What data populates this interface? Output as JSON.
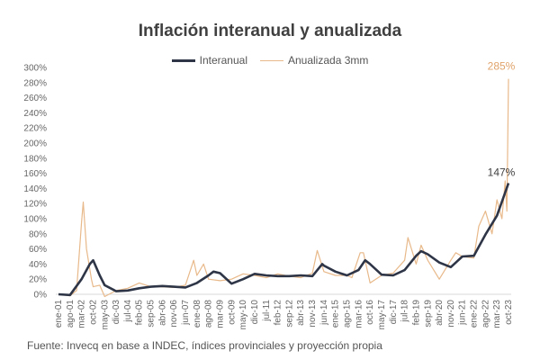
{
  "chart_data": {
    "type": "line",
    "title": "Inflación interanual y anualizada",
    "ylim": [
      0,
      300
    ],
    "y_ticks": [
      "0%",
      "20%",
      "40%",
      "60%",
      "80%",
      "100%",
      "120%",
      "140%",
      "160%",
      "180%",
      "200%",
      "220%",
      "240%",
      "260%",
      "280%",
      "300%"
    ],
    "x_ticks": [
      "ene-01",
      "ago-01",
      "mar-02",
      "oct-02",
      "may-03",
      "dic-03",
      "jul-04",
      "feb-05",
      "sep-05",
      "abr-06",
      "nov-06",
      "jun-07",
      "ene-08",
      "ago-08",
      "mar-09",
      "oct-09",
      "may-10",
      "dic-10",
      "jul-11",
      "feb-12",
      "sep-12",
      "abr-13",
      "nov-13",
      "jun-14",
      "ene-15",
      "ago-15",
      "mar-16",
      "oct-16",
      "may-17",
      "dic-17",
      "jul-18",
      "feb-19",
      "sep-19",
      "abr-20",
      "nov-20",
      "jun-21",
      "ene-22",
      "ago-22",
      "mar-23",
      "oct-23"
    ],
    "grid": false,
    "legend": "top",
    "series": [
      {
        "name": "Interanual",
        "color": "#2e3546",
        "points": [
          [
            "ene-01",
            0
          ],
          [
            "ago-01",
            -1
          ],
          [
            "mar-02",
            20
          ],
          [
            "ago-02",
            40
          ],
          [
            "oct-02",
            45
          ],
          [
            "feb-03",
            25
          ],
          [
            "may-03",
            12
          ],
          [
            "dic-03",
            4
          ],
          [
            "jul-04",
            5
          ],
          [
            "feb-05",
            8
          ],
          [
            "sep-05",
            10
          ],
          [
            "abr-06",
            11
          ],
          [
            "nov-06",
            10
          ],
          [
            "jun-07",
            9
          ],
          [
            "ene-08",
            15
          ],
          [
            "ago-08",
            25
          ],
          [
            "nov-08",
            30
          ],
          [
            "mar-09",
            28
          ],
          [
            "oct-09",
            14
          ],
          [
            "may-10",
            20
          ],
          [
            "dic-10",
            27
          ],
          [
            "jul-11",
            25
          ],
          [
            "feb-12",
            24
          ],
          [
            "sep-12",
            24
          ],
          [
            "abr-13",
            25
          ],
          [
            "nov-13",
            24
          ],
          [
            "may-14",
            40
          ],
          [
            "jun-14",
            38
          ],
          [
            "ene-15",
            30
          ],
          [
            "ago-15",
            25
          ],
          [
            "mar-16",
            32
          ],
          [
            "jul-16",
            45
          ],
          [
            "oct-16",
            40
          ],
          [
            "may-17",
            26
          ],
          [
            "dic-17",
            25
          ],
          [
            "jul-18",
            32
          ],
          [
            "feb-19",
            51
          ],
          [
            "may-19",
            57
          ],
          [
            "sep-19",
            53
          ],
          [
            "abr-20",
            42
          ],
          [
            "nov-20",
            36
          ],
          [
            "jun-21",
            50
          ],
          [
            "ene-22",
            51
          ],
          [
            "ago-22",
            79
          ],
          [
            "mar-23",
            104
          ],
          [
            "oct-23",
            147
          ]
        ],
        "end_label": "147%"
      },
      {
        "name": "Anualizada 3mm",
        "color": "#e8b98a",
        "points": [
          [
            "ene-01",
            0
          ],
          [
            "ago-01",
            -2
          ],
          [
            "dic-01",
            5
          ],
          [
            "mar-02",
            95
          ],
          [
            "abr-02",
            122
          ],
          [
            "jun-02",
            60
          ],
          [
            "sep-02",
            20
          ],
          [
            "oct-02",
            10
          ],
          [
            "feb-03",
            12
          ],
          [
            "may-03",
            -3
          ],
          [
            "dic-03",
            5
          ],
          [
            "jul-04",
            8
          ],
          [
            "feb-05",
            15
          ],
          [
            "sep-05",
            10
          ],
          [
            "abr-06",
            10
          ],
          [
            "nov-06",
            9
          ],
          [
            "jun-07",
            12
          ],
          [
            "nov-07",
            45
          ],
          [
            "ene-08",
            25
          ],
          [
            "may-08",
            40
          ],
          [
            "ago-08",
            20
          ],
          [
            "mar-09",
            18
          ],
          [
            "oct-09",
            20
          ],
          [
            "may-10",
            27
          ],
          [
            "dic-10",
            25
          ],
          [
            "jul-11",
            22
          ],
          [
            "feb-12",
            27
          ],
          [
            "sep-12",
            24
          ],
          [
            "abr-13",
            22
          ],
          [
            "nov-13",
            28
          ],
          [
            "feb-14",
            58
          ],
          [
            "jun-14",
            30
          ],
          [
            "ene-15",
            25
          ],
          [
            "ago-15",
            25
          ],
          [
            "nov-15",
            22
          ],
          [
            "abr-16",
            55
          ],
          [
            "jun-16",
            55
          ],
          [
            "oct-16",
            15
          ],
          [
            "may-17",
            25
          ],
          [
            "dic-17",
            28
          ],
          [
            "jul-18",
            45
          ],
          [
            "sep-18",
            75
          ],
          [
            "feb-19",
            40
          ],
          [
            "may-19",
            65
          ],
          [
            "sep-19",
            45
          ],
          [
            "abr-20",
            20
          ],
          [
            "nov-20",
            45
          ],
          [
            "feb-21",
            55
          ],
          [
            "jun-21",
            50
          ],
          [
            "ene-22",
            48
          ],
          [
            "abr-22",
            90
          ],
          [
            "ago-22",
            110
          ],
          [
            "dic-22",
            80
          ],
          [
            "mar-23",
            125
          ],
          [
            "jun-23",
            100
          ],
          [
            "ago-23",
            150
          ],
          [
            "sep-23",
            110
          ],
          [
            "oct-23",
            285
          ]
        ],
        "end_label": "285%"
      }
    ],
    "source": "Fuente: Invecq en base a INDEC, índices provinciales y proyección propia"
  }
}
